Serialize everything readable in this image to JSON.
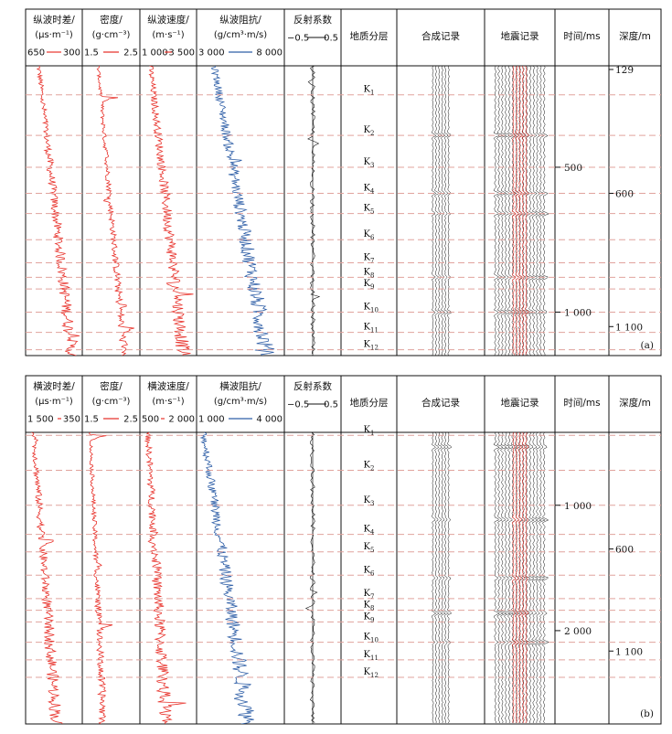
{
  "chart_data": [
    {
      "type": "well-log",
      "panel_label": "(a)",
      "headers": {
        "log1": "纵波时差/",
        "log1_unit": "(μs·m⁻¹)",
        "log1_min": "650",
        "log1_max": "300",
        "log2": "密度/",
        "log2_unit": "(g·cm⁻³)",
        "log2_min": "1.5",
        "log2_max": "2.5",
        "log3": "纵波速度/",
        "log3_unit": "(m·s⁻¹)",
        "log3_min": "1 000",
        "log3_max": "3 500",
        "log4": "纵波阻抗/",
        "log4_unit": "(g/cm³·m/s)",
        "log4_min": "3 000",
        "log4_max": "8 000",
        "refl": "反射系数",
        "refl_min": "−0.5",
        "refl_max": "0.5",
        "geo": "地质分层",
        "synth": "合成记录",
        "seismic": "地震记录",
        "time": "时间/ms",
        "depth": "深度/m"
      },
      "layers": [
        "K1",
        "K2",
        "K3",
        "K4",
        "K5",
        "K6",
        "K7",
        "K8",
        "K9",
        "K10",
        "K11",
        "K12"
      ],
      "layer_positions": [
        0.1,
        0.24,
        0.35,
        0.44,
        0.51,
        0.6,
        0.68,
        0.73,
        0.77,
        0.85,
        0.92,
        0.98
      ],
      "time_ticks": [
        {
          "label": "500",
          "pos": 0.35
        },
        {
          "label": "1 000",
          "pos": 0.85
        }
      ],
      "depth_ticks": [
        {
          "label": "129",
          "pos": 0.0
        },
        {
          "label": "600",
          "pos": 0.44
        },
        {
          "label": "1 100",
          "pos": 0.9
        }
      ],
      "strong_events": [
        0.24,
        0.44,
        0.51,
        0.73,
        0.85
      ],
      "trend": {
        "log1": [
          0.2,
          0.85
        ],
        "log2": [
          0.25,
          0.75
        ],
        "log3": [
          0.15,
          0.8
        ],
        "log4": [
          0.18,
          0.82
        ]
      }
    },
    {
      "type": "well-log",
      "panel_label": "(b)",
      "headers": {
        "log1": "横波时差/",
        "log1_unit": "(μs·m⁻¹)",
        "log1_min": "1 500",
        "log1_max": "350",
        "log2": "密度/",
        "log2_unit": "(g·cm⁻³)",
        "log2_min": "1.5",
        "log2_max": "2.5",
        "log3": "横波速度/",
        "log3_unit": "(m·s⁻¹)",
        "log3_min": "500",
        "log3_max": "2 000",
        "log4": "横波阻抗/",
        "log4_unit": "(g/cm³·m/s)",
        "log4_min": "1 000",
        "log4_max": "4 000",
        "refl": "反射系数",
        "refl_min": "−0.5",
        "refl_max": "0.5",
        "geo": "地质分层",
        "synth": "合成记录",
        "seismic": "地震记录",
        "time": "时间/ms",
        "depth": "深度/m"
      },
      "layers": [
        "K1",
        "K2",
        "K3",
        "K4",
        "K5",
        "K6",
        "K7",
        "K8",
        "K9",
        "K10",
        "K11",
        "K12"
      ],
      "layer_positions": [
        0.01,
        0.13,
        0.25,
        0.35,
        0.41,
        0.49,
        0.57,
        0.61,
        0.65,
        0.72,
        0.78,
        0.84
      ],
      "time_ticks": [
        {
          "label": "1 000",
          "pos": 0.25
        },
        {
          "label": "2 000",
          "pos": 0.68
        }
      ],
      "depth_ticks": [
        {
          "label": "600",
          "pos": 0.4
        },
        {
          "label": "1 100",
          "pos": 0.75
        }
      ],
      "strong_events": [
        0.05,
        0.3,
        0.5,
        0.62,
        0.72
      ],
      "trend": {
        "log1": [
          0.1,
          0.55
        ],
        "log2": [
          0.1,
          0.35
        ],
        "log3": [
          0.1,
          0.45
        ],
        "log4": [
          0.05,
          0.6
        ]
      }
    }
  ]
}
